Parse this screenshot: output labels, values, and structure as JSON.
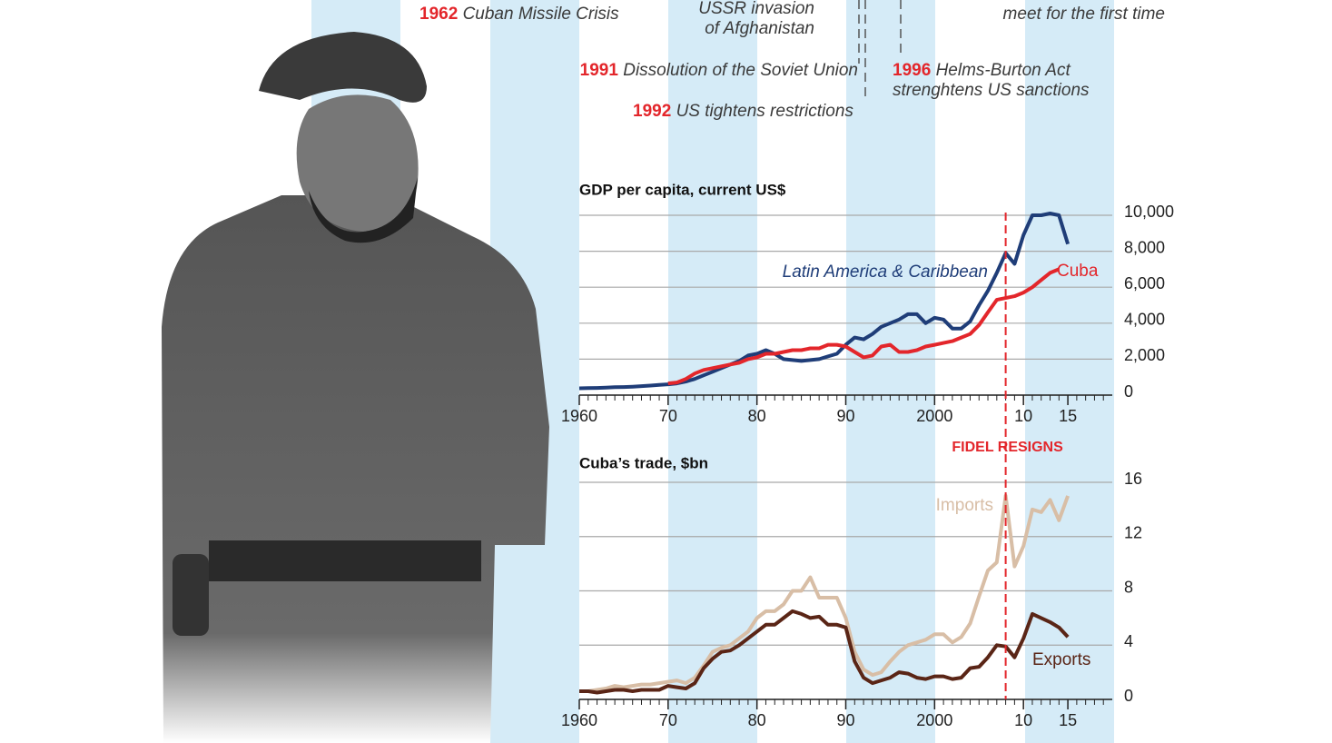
{
  "chart_data": [
    {
      "type": "line",
      "title": "GDP per capita, current US$",
      "x": [
        1960,
        1961,
        1962,
        1963,
        1964,
        1965,
        1966,
        1967,
        1968,
        1969,
        1970,
        1971,
        1972,
        1973,
        1974,
        1975,
        1976,
        1977,
        1978,
        1979,
        1980,
        1981,
        1982,
        1983,
        1984,
        1985,
        1986,
        1987,
        1988,
        1989,
        1990,
        1991,
        1992,
        1993,
        1994,
        1995,
        1996,
        1997,
        1998,
        1999,
        2000,
        2001,
        2002,
        2003,
        2004,
        2005,
        2006,
        2007,
        2008,
        2009,
        2010,
        2011,
        2012,
        2013,
        2014,
        2015
      ],
      "series": [
        {
          "name": "Latin America & Caribbean",
          "color": "#1f3d78",
          "values": [
            380,
            390,
            400,
            420,
            440,
            450,
            470,
            500,
            530,
            570,
            600,
            650,
            750,
            900,
            1100,
            1300,
            1500,
            1700,
            1900,
            2200,
            2300,
            2500,
            2300,
            2000,
            1950,
            1900,
            1950,
            2000,
            2150,
            2300,
            2800,
            3200,
            3100,
            3400,
            3800,
            4000,
            4200,
            4500,
            4500,
            4000,
            4300,
            4200,
            3700,
            3700,
            4100,
            5000,
            5800,
            6800,
            7900,
            7300,
            8900,
            10000,
            10000,
            10100,
            10000,
            8400
          ]
        },
        {
          "name": "Cuba",
          "color": "#e3262b",
          "values": [
            null,
            null,
            null,
            null,
            null,
            null,
            null,
            null,
            null,
            null,
            650,
            700,
            900,
            1200,
            1400,
            1500,
            1600,
            1700,
            1800,
            2000,
            2100,
            2300,
            2300,
            2400,
            2500,
            2500,
            2600,
            2600,
            2800,
            2800,
            2700,
            2400,
            2100,
            2200,
            2700,
            2800,
            2400,
            2400,
            2500,
            2700,
            2800,
            2900,
            3000,
            3200,
            3400,
            3900,
            4600,
            5300,
            5400,
            5500,
            5700,
            6000,
            6400,
            6800,
            7000,
            null
          ]
        }
      ],
      "xlim": [
        1960,
        2020
      ],
      "xticks": [
        1960,
        {
          "value": 1970,
          "label": "70"
        },
        {
          "value": 1980,
          "label": "80"
        },
        {
          "value": 1990,
          "label": "90"
        },
        2000,
        {
          "value": 2010,
          "label": "10"
        },
        {
          "value": 2015,
          "label": "15"
        }
      ],
      "ylim": [
        0,
        10000
      ],
      "yticks": [
        0,
        {
          "value": 2000,
          "label": "2,000"
        },
        {
          "value": 4000,
          "label": "4,000"
        },
        {
          "value": 6000,
          "label": "6,000"
        },
        {
          "value": 8000,
          "label": "8,000"
        },
        {
          "value": 10000,
          "label": "10,000"
        }
      ],
      "grid": true
    },
    {
      "type": "line",
      "title": "Cuba’s trade, $bn",
      "x": [
        1960,
        1961,
        1962,
        1963,
        1964,
        1965,
        1966,
        1967,
        1968,
        1969,
        1970,
        1971,
        1972,
        1973,
        1974,
        1975,
        1976,
        1977,
        1978,
        1979,
        1980,
        1981,
        1982,
        1983,
        1984,
        1985,
        1986,
        1987,
        1988,
        1989,
        1990,
        1991,
        1992,
        1993,
        1994,
        1995,
        1996,
        1997,
        1998,
        1999,
        2000,
        2001,
        2002,
        2003,
        2004,
        2005,
        2006,
        2007,
        2008,
        2009,
        2010,
        2011,
        2012,
        2013,
        2014,
        2015
      ],
      "series": [
        {
          "name": "Imports",
          "color": "#d8bea6",
          "values": [
            0.6,
            0.6,
            0.7,
            0.8,
            1.0,
            0.9,
            1.0,
            1.1,
            1.1,
            1.2,
            1.3,
            1.4,
            1.2,
            1.6,
            2.5,
            3.5,
            3.8,
            4.0,
            4.5,
            5.0,
            6.0,
            6.5,
            6.5,
            7.0,
            8.0,
            8.0,
            9.0,
            7.5,
            7.5,
            7.5,
            6.0,
            3.5,
            2.2,
            1.8,
            2.0,
            2.8,
            3.5,
            4.0,
            4.2,
            4.4,
            4.8,
            4.8,
            4.2,
            4.6,
            5.6,
            7.6,
            9.5,
            10.1,
            15.0,
            9.8,
            11.3,
            14.0,
            13.8,
            14.7,
            13.2,
            15.0
          ]
        },
        {
          "name": "Exports",
          "color": "#5a2516",
          "values": [
            0.6,
            0.6,
            0.5,
            0.6,
            0.7,
            0.7,
            0.6,
            0.7,
            0.7,
            0.7,
            1.0,
            0.9,
            0.8,
            1.2,
            2.3,
            3.0,
            3.5,
            3.6,
            4.0,
            4.5,
            5.0,
            5.5,
            5.5,
            6.0,
            6.5,
            6.3,
            6.0,
            6.1,
            5.5,
            5.5,
            5.3,
            2.8,
            1.6,
            1.2,
            1.4,
            1.6,
            2.0,
            1.9,
            1.6,
            1.5,
            1.7,
            1.7,
            1.5,
            1.6,
            2.3,
            2.4,
            3.1,
            4.0,
            3.9,
            3.1,
            4.5,
            6.3,
            6.0,
            5.7,
            5.3,
            4.6
          ]
        }
      ],
      "xlim": [
        1960,
        2020
      ],
      "xticks": [
        1960,
        {
          "value": 1970,
          "label": "70"
        },
        {
          "value": 1980,
          "label": "80"
        },
        {
          "value": 1990,
          "label": "90"
        },
        2000,
        {
          "value": 2010,
          "label": "10"
        },
        {
          "value": 2015,
          "label": "15"
        }
      ],
      "ylim": [
        0,
        16
      ],
      "yticks": [
        0,
        4,
        8,
        12,
        16
      ],
      "grid": true
    }
  ],
  "event": {
    "label": "FIDEL RESIGNS",
    "x": 2008,
    "color": "#e3262b"
  },
  "timeline": [
    {
      "year": "1962",
      "lines": [
        "Cuban Missile Crisis"
      ]
    },
    {
      "lines": [
        "USSR invasion",
        "of Afghanistan"
      ]
    },
    {
      "year": "1991",
      "lines": [
        "Dissolution of the Soviet Union"
      ]
    },
    {
      "year": "1992",
      "lines": [
        "US tightens restrictions"
      ]
    },
    {
      "year": "1996",
      "lines": [
        "Helms-Burton Act",
        "strenghtens US sanctions"
      ]
    },
    {
      "lines": [
        "meet for the first time"
      ]
    }
  ]
}
